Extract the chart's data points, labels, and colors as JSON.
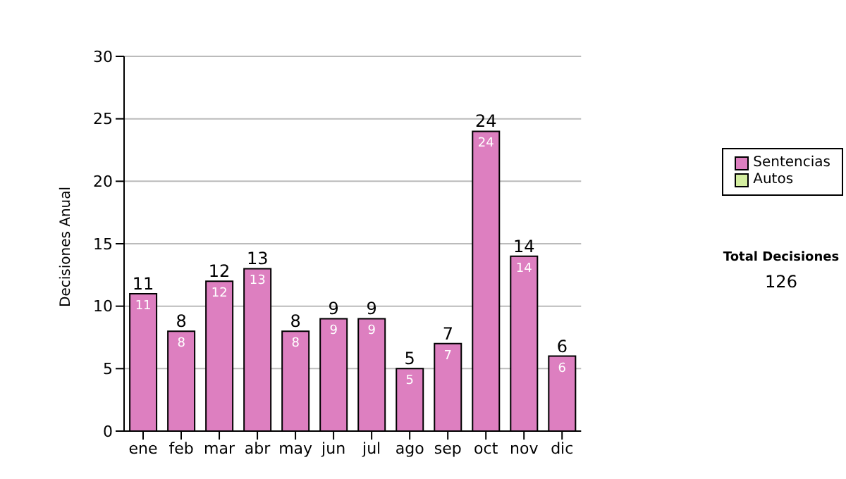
{
  "chart_data": {
    "type": "bar",
    "ylabel": "Decisiones Anual",
    "categories": [
      "ene",
      "feb",
      "mar",
      "abr",
      "may",
      "jun",
      "jul",
      "ago",
      "sep",
      "oct",
      "nov",
      "dic"
    ],
    "series": [
      {
        "name": "Sentencias",
        "color": "#dd7fc0",
        "values": [
          11,
          8,
          12,
          13,
          8,
          9,
          9,
          5,
          7,
          24,
          14,
          6
        ],
        "value_labels": [
          "11",
          "8",
          "12",
          "13",
          "8",
          "9",
          "9",
          "5",
          "7",
          "24",
          "14",
          "6"
        ]
      },
      {
        "name": "Autos",
        "color": "#d4eea0",
        "values": [
          0,
          0,
          0,
          0,
          0,
          0,
          0,
          0,
          0,
          0,
          0,
          0
        ]
      }
    ],
    "stacked": true,
    "totals": [
      "11",
      "8",
      "12",
      "13",
      "8",
      "9",
      "9",
      "5",
      "7",
      "24",
      "14",
      "6"
    ],
    "ylim": [
      0,
      30
    ],
    "yticks": [
      0,
      5,
      10,
      15,
      20,
      25,
      30
    ],
    "grid": "y",
    "legend": "right",
    "annotations": [
      "Total Decisiones",
      "126"
    ]
  }
}
